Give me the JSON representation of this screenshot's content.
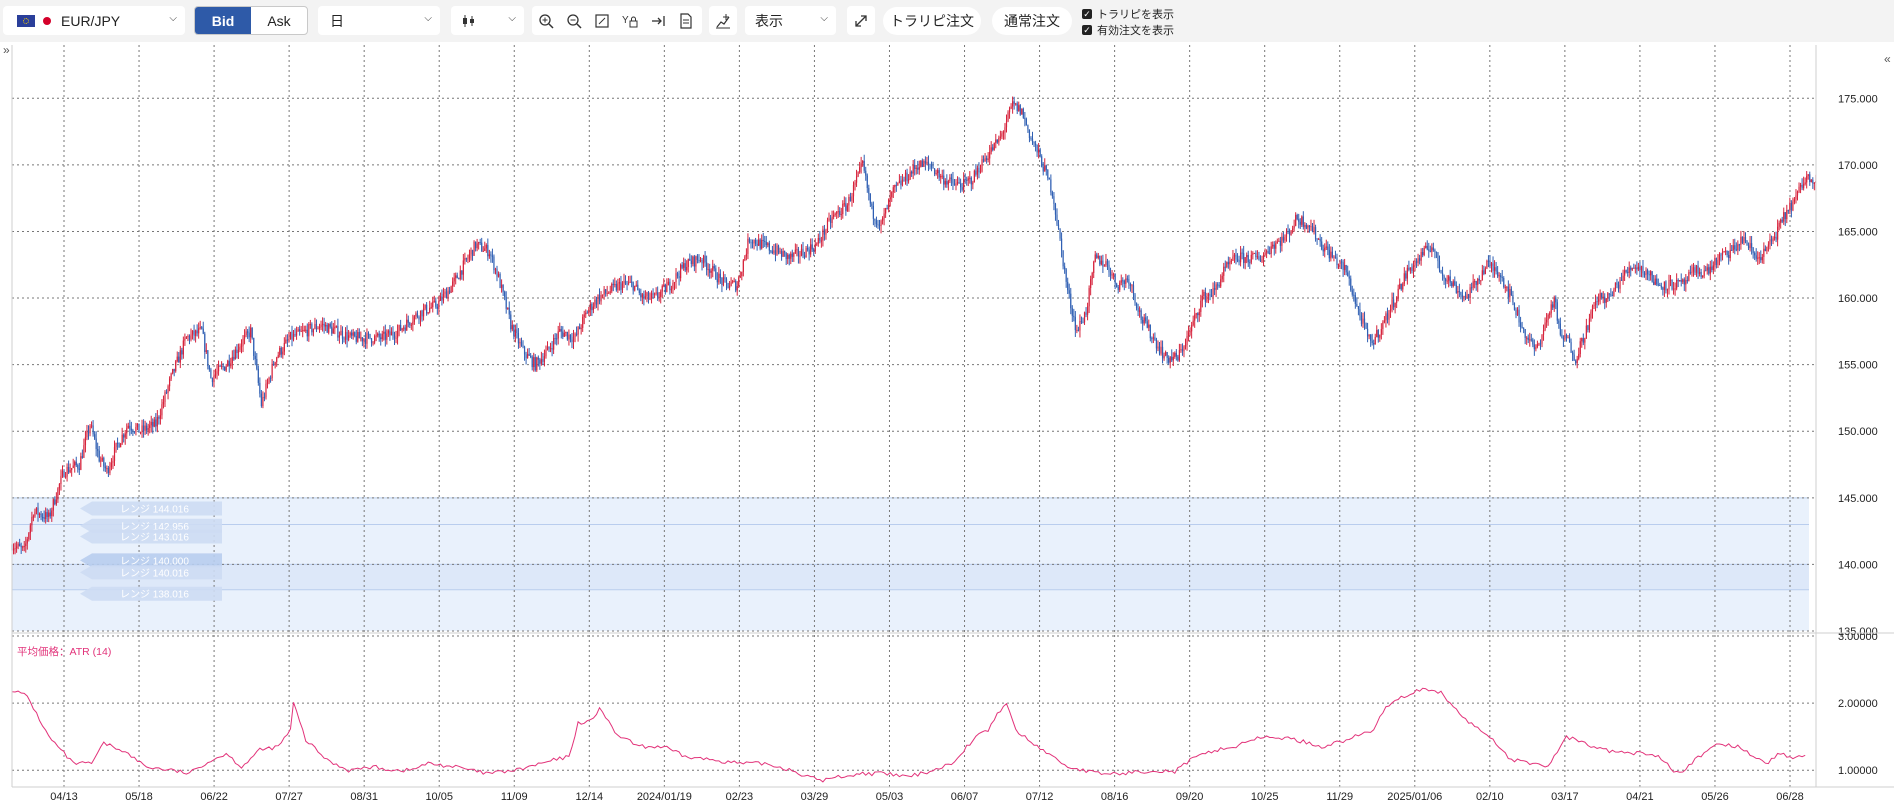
{
  "toolbar": {
    "symbol": "EUR/JPY",
    "bid_label": "Bid",
    "ask_label": "Ask",
    "timeframe": "日",
    "display_label": "表示",
    "trap_order_label": "トラリピ注文",
    "normal_order_label": "通常注文",
    "show_trap_label": "トラリピを表示",
    "show_active_orders_label": "有効注文を表示",
    "icons": [
      "zoom-in-icon",
      "zoom-out-icon",
      "fit-icon",
      "y-lock-icon",
      "jump-latest-icon",
      "document-icon",
      "add-indicator-icon",
      "expand-icon"
    ]
  },
  "colors": {
    "up": "#d6223b",
    "down": "#2f5fb3",
    "atr": "#e2337a",
    "range_band": "#e9f1fc"
  },
  "range_tags": [
    "レンジ 144.016",
    "レンジ 142.956",
    "レンジ 143.016",
    "レンジ 140.000",
    "レンジ 140.016",
    "レンジ 138.016"
  ],
  "chart_data": [
    {
      "type": "candlestick",
      "title": "",
      "series_name": "EUR/JPY",
      "price_axis": {
        "ticks": [
          "135.000",
          "140.000",
          "145.000",
          "150.000",
          "155.000",
          "160.000",
          "165.000",
          "170.000",
          "175.000"
        ],
        "ylim": [
          135,
          179
        ]
      },
      "x_ticks": [
        "04/13",
        "05/18",
        "06/22",
        "07/27",
        "08/31",
        "10/05",
        "11/09",
        "12/14",
        "2024/01/19",
        "02/23",
        "03/29",
        "05/03",
        "06/07",
        "07/12",
        "08/16",
        "09/20",
        "10/25",
        "11/29",
        "2025/01/06",
        "02/10",
        "03/17",
        "04/21",
        "05/26",
        "06/28"
      ],
      "close_path": [
        [
          0,
          141.5
        ],
        [
          8,
          141
        ],
        [
          14,
          144
        ],
        [
          24,
          143.5
        ],
        [
          34,
          147
        ],
        [
          44,
          147.5
        ],
        [
          51,
          150.5
        ],
        [
          57,
          148
        ],
        [
          62,
          147
        ],
        [
          69,
          149
        ],
        [
          76,
          150.5
        ],
        [
          84,
          150
        ],
        [
          94,
          150.5
        ],
        [
          104,
          154
        ],
        [
          114,
          157
        ],
        [
          124,
          157.5
        ],
        [
          130,
          154
        ],
        [
          140,
          155
        ],
        [
          149,
          156.5
        ],
        [
          156,
          157.5
        ],
        [
          163,
          152
        ],
        [
          172,
          155.5
        ],
        [
          182,
          157
        ],
        [
          192,
          157.5
        ],
        [
          202,
          158
        ],
        [
          212,
          157.5
        ],
        [
          222,
          157
        ],
        [
          232,
          157
        ],
        [
          242,
          157
        ],
        [
          252,
          157.5
        ],
        [
          262,
          158.5
        ],
        [
          268,
          159
        ],
        [
          278,
          159.5
        ],
        [
          288,
          161
        ],
        [
          298,
          163
        ],
        [
          303,
          164
        ],
        [
          312,
          163.5
        ],
        [
          318,
          161.5
        ],
        [
          326,
          158
        ],
        [
          334,
          156
        ],
        [
          342,
          155
        ],
        [
          350,
          156
        ],
        [
          358,
          157.5
        ],
        [
          368,
          157
        ],
        [
          376,
          159
        ],
        [
          383,
          160
        ],
        [
          390,
          160.5
        ],
        [
          398,
          161
        ],
        [
          406,
          161
        ],
        [
          412,
          160
        ],
        [
          420,
          160
        ],
        [
          430,
          161
        ],
        [
          440,
          162.5
        ],
        [
          450,
          163
        ],
        [
          458,
          162
        ],
        [
          466,
          161
        ],
        [
          474,
          161
        ],
        [
          482,
          164.5
        ],
        [
          490,
          164
        ],
        [
          500,
          163.5
        ],
        [
          508,
          163
        ],
        [
          518,
          163.5
        ],
        [
          526,
          164
        ],
        [
          536,
          166
        ],
        [
          546,
          167
        ],
        [
          556,
          170
        ],
        [
          562,
          166.5
        ],
        [
          568,
          165.5
        ],
        [
          576,
          168
        ],
        [
          584,
          169
        ],
        [
          592,
          170
        ],
        [
          600,
          170
        ],
        [
          608,
          169
        ],
        [
          616,
          168.5
        ],
        [
          622,
          168.5
        ],
        [
          628,
          169
        ],
        [
          636,
          170.5
        ],
        [
          646,
          172
        ],
        [
          654,
          174.5
        ],
        [
          660,
          174
        ],
        [
          666,
          172
        ],
        [
          672,
          170.5
        ],
        [
          680,
          168
        ],
        [
          684,
          165
        ],
        [
          690,
          160.5
        ],
        [
          696,
          157.5
        ],
        [
          702,
          159
        ],
        [
          708,
          163
        ],
        [
          716,
          162.5
        ],
        [
          722,
          161
        ],
        [
          730,
          161.5
        ],
        [
          738,
          158.5
        ],
        [
          746,
          157
        ],
        [
          754,
          155.5
        ],
        [
          762,
          155.5
        ],
        [
          770,
          157.5
        ],
        [
          778,
          160
        ],
        [
          786,
          160.5
        ],
        [
          792,
          162
        ],
        [
          800,
          163
        ],
        [
          808,
          163
        ],
        [
          816,
          163
        ],
        [
          824,
          164
        ],
        [
          832,
          164.5
        ],
        [
          840,
          166
        ],
        [
          848,
          165.5
        ],
        [
          856,
          164
        ],
        [
          864,
          163
        ],
        [
          872,
          162
        ],
        [
          880,
          159
        ],
        [
          888,
          156.5
        ],
        [
          896,
          158
        ],
        [
          904,
          160
        ],
        [
          912,
          162
        ],
        [
          920,
          163
        ],
        [
          928,
          164
        ],
        [
          934,
          162
        ],
        [
          942,
          161
        ],
        [
          950,
          160
        ],
        [
          956,
          161
        ],
        [
          964,
          162.5
        ],
        [
          972,
          162
        ],
        [
          980,
          160
        ],
        [
          988,
          157.5
        ],
        [
          996,
          156
        ],
        [
          1002,
          158
        ],
        [
          1008,
          160
        ],
        [
          1012,
          157
        ],
        [
          1016,
          157
        ],
        [
          1022,
          155.5
        ],
        [
          1030,
          158
        ],
        [
          1036,
          160
        ],
        [
          1044,
          160
        ],
        [
          1052,
          161.5
        ],
        [
          1060,
          162.5
        ],
        [
          1068,
          162
        ],
        [
          1076,
          161
        ],
        [
          1084,
          161
        ],
        [
          1092,
          161
        ],
        [
          1100,
          162
        ],
        [
          1108,
          162
        ],
        [
          1116,
          163
        ],
        [
          1124,
          163.5
        ],
        [
          1132,
          164.5
        ],
        [
          1140,
          163
        ],
        [
          1146,
          163.5
        ],
        [
          1154,
          165
        ],
        [
          1160,
          166.5
        ],
        [
          1166,
          167.5
        ],
        [
          1172,
          169
        ],
        [
          1179,
          169
        ]
      ],
      "atr_path": [
        [
          0,
          2.2
        ],
        [
          10,
          2.1
        ],
        [
          24,
          1.5
        ],
        [
          40,
          1.1
        ],
        [
          52,
          1.1
        ],
        [
          60,
          1.4
        ],
        [
          72,
          1.3
        ],
        [
          88,
          1.05
        ],
        [
          104,
          1.0
        ],
        [
          116,
          0.95
        ],
        [
          126,
          1.1
        ],
        [
          140,
          1.25
        ],
        [
          150,
          1.05
        ],
        [
          162,
          1.3
        ],
        [
          174,
          1.35
        ],
        [
          182,
          1.6
        ],
        [
          184,
          2.0
        ],
        [
          192,
          1.45
        ],
        [
          206,
          1.15
        ],
        [
          220,
          1.0
        ],
        [
          236,
          1.05
        ],
        [
          250,
          1.0
        ],
        [
          260,
          1.0
        ],
        [
          272,
          1.1
        ],
        [
          290,
          1.05
        ],
        [
          310,
          0.95
        ],
        [
          330,
          1.0
        ],
        [
          354,
          1.15
        ],
        [
          364,
          1.2
        ],
        [
          370,
          1.7
        ],
        [
          380,
          1.75
        ],
        [
          384,
          1.95
        ],
        [
          394,
          1.55
        ],
        [
          410,
          1.35
        ],
        [
          426,
          1.35
        ],
        [
          440,
          1.2
        ],
        [
          460,
          1.15
        ],
        [
          476,
          1.1
        ],
        [
          492,
          1.1
        ],
        [
          510,
          1.0
        ],
        [
          520,
          0.9
        ],
        [
          530,
          0.85
        ],
        [
          540,
          0.9
        ],
        [
          556,
          0.95
        ],
        [
          570,
          0.95
        ],
        [
          586,
          0.9
        ],
        [
          602,
          1.0
        ],
        [
          614,
          1.1
        ],
        [
          630,
          1.5
        ],
        [
          638,
          1.6
        ],
        [
          646,
          1.9
        ],
        [
          650,
          2.0
        ],
        [
          656,
          1.6
        ],
        [
          664,
          1.45
        ],
        [
          674,
          1.3
        ],
        [
          690,
          1.05
        ],
        [
          700,
          1.0
        ],
        [
          710,
          0.95
        ],
        [
          726,
          0.95
        ],
        [
          746,
          1.0
        ],
        [
          760,
          0.98
        ],
        [
          770,
          1.15
        ],
        [
          786,
          1.3
        ],
        [
          800,
          1.35
        ],
        [
          808,
          1.45
        ],
        [
          824,
          1.5
        ],
        [
          840,
          1.45
        ],
        [
          856,
          1.35
        ],
        [
          872,
          1.45
        ],
        [
          890,
          1.6
        ],
        [
          898,
          1.95
        ],
        [
          904,
          2.05
        ],
        [
          920,
          2.2
        ],
        [
          934,
          2.15
        ],
        [
          950,
          1.75
        ],
        [
          966,
          1.5
        ],
        [
          980,
          1.15
        ],
        [
          996,
          1.1
        ],
        [
          1004,
          1.05
        ],
        [
          1016,
          1.5
        ],
        [
          1028,
          1.4
        ],
        [
          1040,
          1.3
        ],
        [
          1056,
          1.25
        ],
        [
          1072,
          1.25
        ],
        [
          1080,
          1.15
        ],
        [
          1086,
          1.0
        ],
        [
          1092,
          1.0
        ],
        [
          1100,
          1.15
        ],
        [
          1116,
          1.4
        ],
        [
          1128,
          1.35
        ],
        [
          1140,
          1.2
        ],
        [
          1148,
          1.1
        ],
        [
          1154,
          1.25
        ],
        [
          1162,
          1.2
        ],
        [
          1172,
          1.2
        ]
      ]
    },
    {
      "type": "line",
      "title": "平均価格：ATR (14)",
      "price_axis": {
        "ticks": [
          "1.00000",
          "2.00000",
          "3.00000"
        ],
        "ylim": [
          0.75,
          3.0
        ]
      }
    }
  ]
}
